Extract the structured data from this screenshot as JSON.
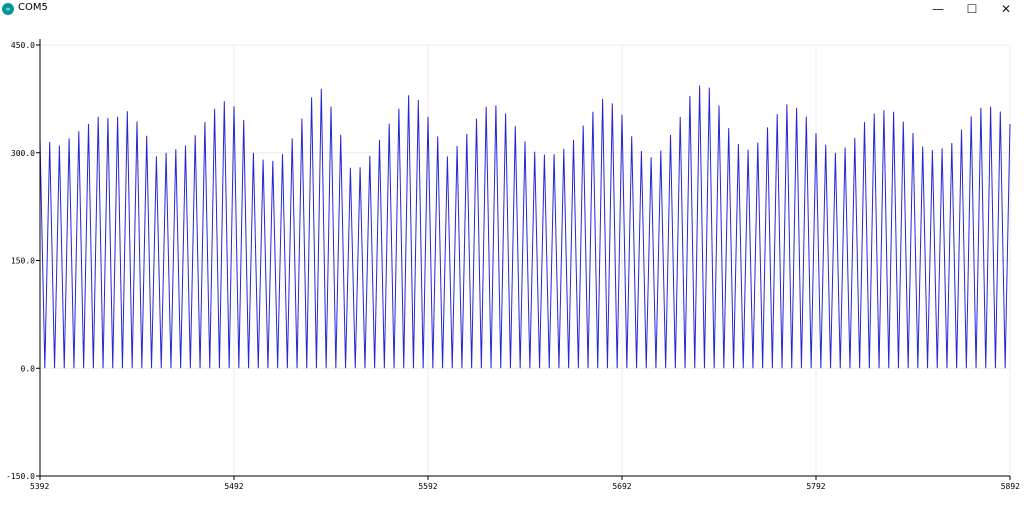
{
  "window": {
    "title": "COM5",
    "controls": {
      "minimize": "—",
      "maximize": "☐",
      "close": "✕"
    },
    "icon": "arduino-icon"
  },
  "chart_data": {
    "type": "line",
    "title": "",
    "xlabel": "",
    "ylabel": "",
    "xlim": [
      5392,
      5892
    ],
    "ylim": [
      -150,
      450
    ],
    "x_ticks": [
      "5392",
      "5492",
      "5592",
      "5692",
      "5792",
      "5892"
    ],
    "y_ticks": [
      "-150.0",
      "0.0",
      "150.0",
      "300.0",
      "450.0"
    ],
    "grid": true,
    "series": [
      {
        "name": "",
        "color": "#0000cc",
        "pattern": "alternating spike from 0 to peak on every other sample",
        "peak_envelope": [
          [
            5392,
            320
          ],
          [
            5402,
            310
          ],
          [
            5412,
            330
          ],
          [
            5422,
            350
          ],
          [
            5430,
            347
          ],
          [
            5437,
            358
          ],
          [
            5445,
            335
          ],
          [
            5452,
            295
          ],
          [
            5460,
            303
          ],
          [
            5467,
            310
          ],
          [
            5475,
            333
          ],
          [
            5480,
            357
          ],
          [
            5488,
            374
          ],
          [
            5496,
            355
          ],
          [
            5502,
            300
          ],
          [
            5510,
            285
          ],
          [
            5518,
            300
          ],
          [
            5524,
            330
          ],
          [
            5530,
            365
          ],
          [
            5535,
            395
          ],
          [
            5540,
            380
          ],
          [
            5547,
            325
          ],
          [
            5553,
            270
          ],
          [
            5560,
            287
          ],
          [
            5567,
            318
          ],
          [
            5575,
            354
          ],
          [
            5582,
            380
          ],
          [
            5588,
            372
          ],
          [
            5595,
            334
          ],
          [
            5602,
            295
          ],
          [
            5610,
            318
          ],
          [
            5618,
            352
          ],
          [
            5624,
            370
          ],
          [
            5630,
            362
          ],
          [
            5637,
            337
          ],
          [
            5645,
            303
          ],
          [
            5655,
            295
          ],
          [
            5665,
            310
          ],
          [
            5675,
            350
          ],
          [
            5682,
            375
          ],
          [
            5690,
            365
          ],
          [
            5697,
            323
          ],
          [
            5705,
            290
          ],
          [
            5712,
            303
          ],
          [
            5720,
            338
          ],
          [
            5728,
            385
          ],
          [
            5735,
            400
          ],
          [
            5741,
            372
          ],
          [
            5748,
            328
          ],
          [
            5755,
            300
          ],
          [
            5762,
            314
          ],
          [
            5770,
            348
          ],
          [
            5778,
            370
          ],
          [
            5786,
            355
          ],
          [
            5794,
            318
          ],
          [
            5802,
            300
          ],
          [
            5810,
            312
          ],
          [
            5818,
            347
          ],
          [
            5825,
            360
          ],
          [
            5832,
            357
          ],
          [
            5840,
            335
          ],
          [
            5848,
            305
          ],
          [
            5855,
            303
          ],
          [
            5863,
            315
          ],
          [
            5870,
            345
          ],
          [
            5876,
            362
          ],
          [
            5882,
            364
          ],
          [
            5888,
            356
          ],
          [
            5892,
            340
          ]
        ]
      }
    ]
  }
}
